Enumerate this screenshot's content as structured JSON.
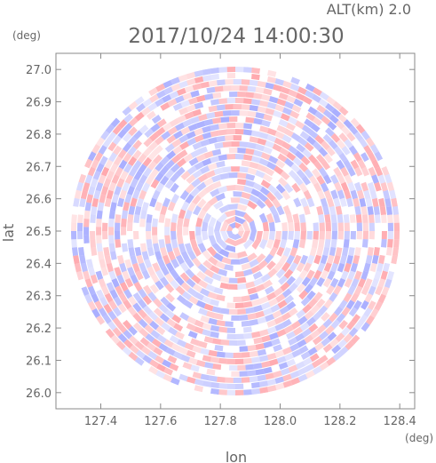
{
  "header": {
    "alt_label": "ALT(km) 2.0",
    "timestamp": "2017/10/24 14:00:30"
  },
  "chart_data": {
    "type": "heatmap",
    "title": "2017/10/24 14:00:30",
    "xlabel": "lon",
    "ylabel": "lat",
    "x_unit": "(deg)",
    "y_unit": "(deg)",
    "xlim": [
      127.25,
      128.45
    ],
    "ylim": [
      25.95,
      27.05
    ],
    "x_ticks": [
      127.4,
      127.6,
      127.8,
      128.0,
      128.2,
      128.4
    ],
    "x_tick_labels": [
      "127.4",
      "127.6",
      "127.8",
      "128.0",
      "128.2",
      "128.4"
    ],
    "y_ticks": [
      26.0,
      26.1,
      26.2,
      26.3,
      26.4,
      26.5,
      26.6,
      26.7,
      26.8,
      26.9,
      27.0
    ],
    "y_tick_labels": [
      "26.0",
      "26.1",
      "26.2",
      "26.3",
      "26.4",
      "26.5",
      "26.6",
      "26.7",
      "26.8",
      "26.9",
      "27.0"
    ],
    "domain_center": [
      127.85,
      26.5
    ],
    "domain_radius_deg": 0.55,
    "colormap": {
      "negative": "#9aa0ff",
      "neutral": "#ffffff",
      "positive": "#ff9aa0"
    },
    "grid": false,
    "legend": "none"
  }
}
